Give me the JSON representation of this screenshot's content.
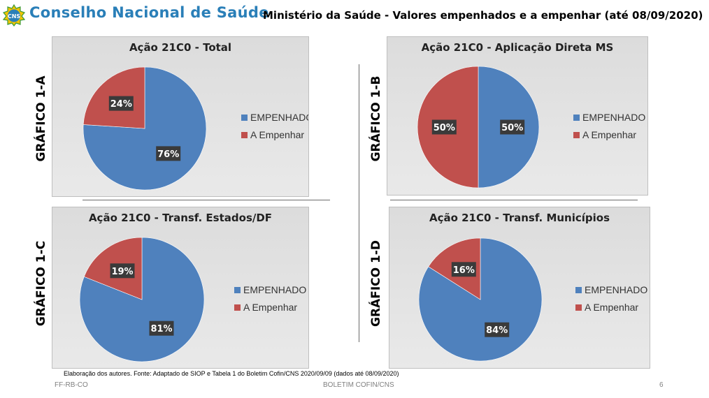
{
  "header": {
    "logo_text": "CNS",
    "org_name": "Conselho Nacional de Saúde",
    "title": "Ministério da Saúde - Valores empenhados e a empenhar (até 08/09/2020)"
  },
  "colors": {
    "empenhado": "#4f81bd",
    "a_empenhar": "#c0504d",
    "label_bg": "#3a3a3a"
  },
  "chart_data": [
    {
      "type": "pie",
      "side_label": "GRÁFICO 1-A",
      "title": "Ação 21C0 - Total",
      "categories": [
        "EMPENHADO",
        "A Empenhar"
      ],
      "values": [
        76,
        24
      ],
      "labels": [
        "76%",
        "24%"
      ]
    },
    {
      "type": "pie",
      "side_label": "GRÁFICO 1-B",
      "title": "Ação 21C0 - Aplicação Direta MS",
      "categories": [
        "EMPENHADO",
        "A Empenhar"
      ],
      "values": [
        50,
        50
      ],
      "labels": [
        "50%",
        "50%"
      ]
    },
    {
      "type": "pie",
      "side_label": "GRÁFICO 1-C",
      "title": "Ação 21C0 - Transf. Estados/DF",
      "categories": [
        "EMPENHADO",
        "A Empenhar"
      ],
      "values": [
        81,
        19
      ],
      "labels": [
        "81%",
        "19%"
      ]
    },
    {
      "type": "pie",
      "side_label": "GRÁFICO 1-D",
      "title": "Ação 21C0 - Transf. Municípios",
      "categories": [
        "EMPENHADO",
        "A Empenhar"
      ],
      "values": [
        84,
        16
      ],
      "labels": [
        "84%",
        "16%"
      ]
    }
  ],
  "footnote": "Elaboração dos autores. Fonte: Adaptado de SIOP e Tabela 1 do Boletim Cofin/CNS 2020/09/09  (dados até 08/09/2020)",
  "footer": {
    "left": "FF-RB-CO",
    "center": "BOLETIM COFIN/CNS",
    "page": "6"
  }
}
